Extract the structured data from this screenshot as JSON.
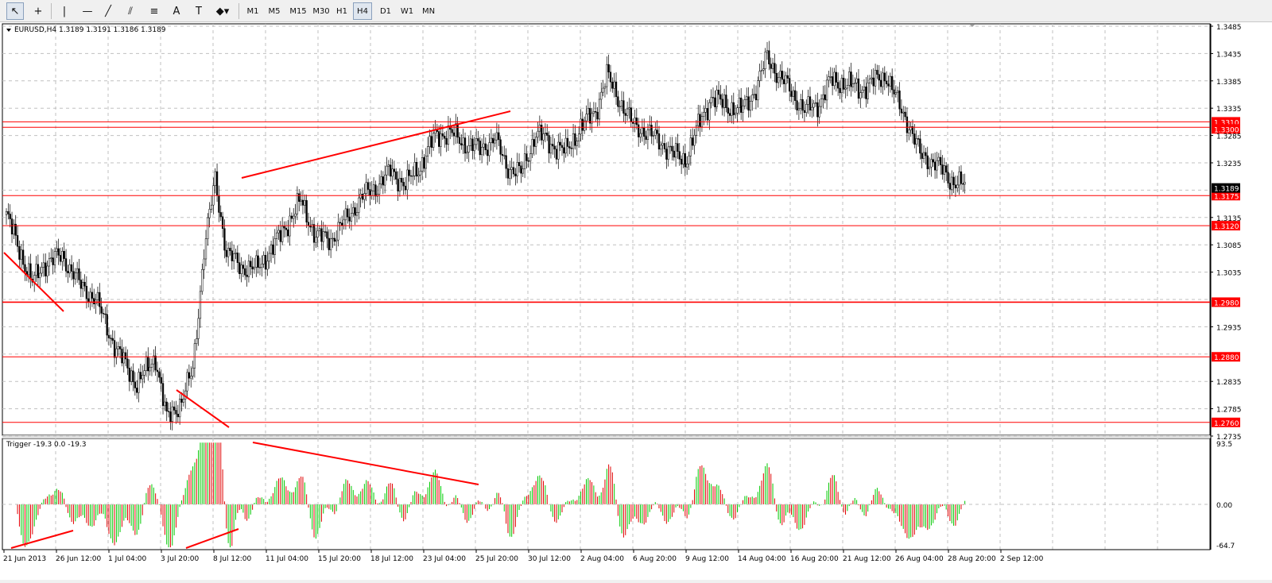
{
  "toolbar": {
    "tools": [
      {
        "name": "cursor-icon",
        "glyph": "↖"
      },
      {
        "name": "crosshair-icon",
        "glyph": "+"
      },
      {
        "name": "vertical-line-icon",
        "glyph": "|"
      },
      {
        "name": "horizontal-line-icon",
        "glyph": "—"
      },
      {
        "name": "trendline-icon",
        "glyph": "╱"
      },
      {
        "name": "equidistant-channel-icon",
        "glyph": "⫽"
      },
      {
        "name": "fibonacci-icon",
        "glyph": "≡"
      },
      {
        "name": "text-icon",
        "glyph": "A"
      },
      {
        "name": "text-label-icon",
        "glyph": "T"
      },
      {
        "name": "arrows-icon",
        "glyph": "◆▾"
      }
    ],
    "timeframes": [
      "M1",
      "M5",
      "M15",
      "M30",
      "H1",
      "H4",
      "D1",
      "W1",
      "MN"
    ],
    "active_timeframe": "H4"
  },
  "chart": {
    "header": "EURUSD,H4  1.3189 1.3191 1.3186 1.3189",
    "price_axis_labels": [
      "1.3485",
      "1.3435",
      "1.3385",
      "1.3335",
      "1.3285",
      "1.3235",
      "1.3135",
      "1.3085",
      "1.3035",
      "1.2935",
      "1.2835",
      "1.2785",
      "1.2735"
    ],
    "current_price": "1.3189",
    "levels": [
      "1.3310",
      "1.3300",
      "1.3175",
      "1.3120",
      "1.2980",
      "1.2880",
      "1.2760"
    ],
    "time_labels": [
      "21 Jun 2013",
      "26 Jun 12:00",
      "1 Jul 04:00",
      "3 Jul 20:00",
      "8 Jul 12:00",
      "11 Jul 04:00",
      "15 Jul 20:00",
      "18 Jul 12:00",
      "23 Jul 04:00",
      "25 Jul 20:00",
      "30 Jul 12:00",
      "2 Aug 04:00",
      "6 Aug 20:00",
      "9 Aug 12:00",
      "14 Aug 04:00",
      "16 Aug 20:00",
      "21 Aug 12:00",
      "26 Aug 04:00",
      "28 Aug 20:00",
      "2 Sep 12:00"
    ],
    "colors": {
      "up": "#00c800",
      "down": "#e00000",
      "level": "#ff0000",
      "grid": "#c0c0c0",
      "candle_body_up": "#ffffff",
      "candle_body_down": "#000000"
    }
  },
  "indicator": {
    "header": "Trigger -19.3 0.0 -19.3",
    "axis_labels": [
      "93.5",
      "0.00",
      "-64.7"
    ]
  }
}
